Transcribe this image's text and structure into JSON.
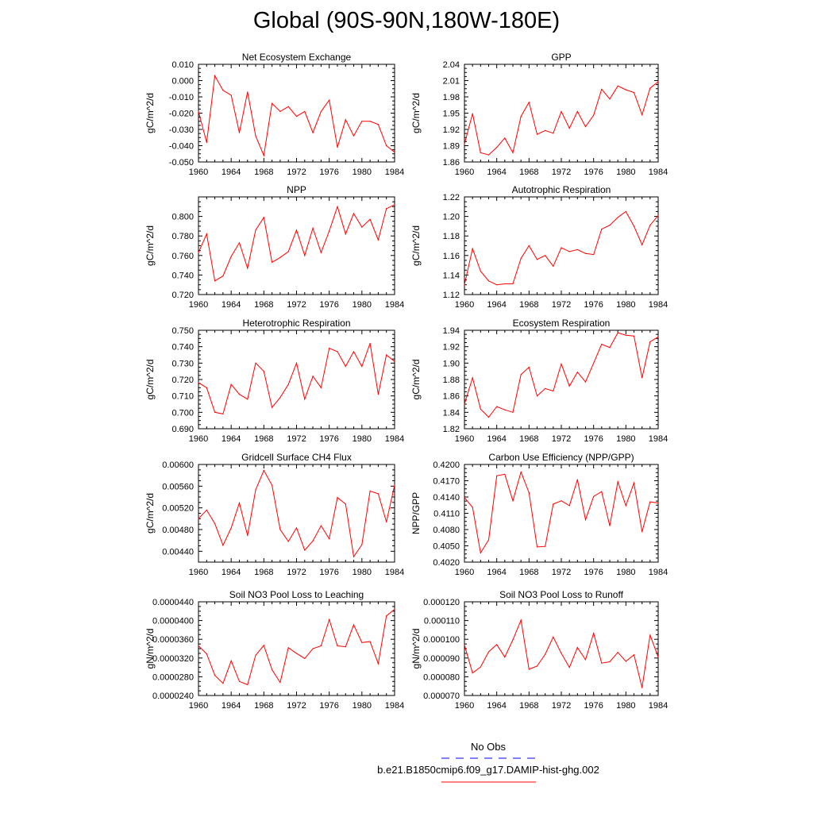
{
  "title": "Global (90S-90N,180W-180E)",
  "colors": {
    "model": "#ff0000",
    "obs": "#0000ff",
    "axis": "#000000"
  },
  "legend": {
    "obs_label": "No Obs",
    "model_label": "b.e21.B1850cmip6.f09_g17.DAMIP-hist-ghg.002"
  },
  "chart_data": [
    {
      "type": "line",
      "title": "Net Ecosystem Exchange",
      "ylabel": "gC/m^2/d",
      "xlim": [
        1960,
        1984
      ],
      "ylim": [
        -0.05,
        0.01
      ],
      "xticks": [
        "1960",
        "1964",
        "1968",
        "1972",
        "1976",
        "1980",
        "1984"
      ],
      "yticks": [
        "-0.050",
        "-0.040",
        "-0.030",
        "-0.020",
        "-0.010",
        "0.000",
        "0.010"
      ],
      "x": [
        1960,
        1961,
        1962,
        1963,
        1964,
        1965,
        1966,
        1967,
        1968,
        1969,
        1970,
        1971,
        1972,
        1973,
        1974,
        1975,
        1976,
        1977,
        1978,
        1979,
        1980,
        1981,
        1982,
        1983,
        1984
      ],
      "series": [
        {
          "values": [
            -0.019,
            -0.038,
            0.003,
            -0.006,
            -0.009,
            -0.032,
            -0.007,
            -0.034,
            -0.046,
            -0.014,
            -0.019,
            -0.016,
            -0.022,
            -0.019,
            -0.032,
            -0.019,
            -0.012,
            -0.041,
            -0.024,
            -0.034,
            -0.025,
            -0.025,
            -0.027,
            -0.04,
            -0.044
          ]
        }
      ]
    },
    {
      "type": "line",
      "title": "GPP",
      "ylabel": "gC/m^2/d",
      "xlim": [
        1960,
        1984
      ],
      "ylim": [
        1.86,
        2.04
      ],
      "xticks": [
        "1960",
        "1964",
        "1968",
        "1972",
        "1976",
        "1980",
        "1984"
      ],
      "yticks": [
        "1.86",
        "1.89",
        "1.92",
        "1.95",
        "1.98",
        "2.01",
        "2.04"
      ],
      "x": [
        1960,
        1961,
        1962,
        1963,
        1964,
        1965,
        1966,
        1967,
        1968,
        1969,
        1970,
        1971,
        1972,
        1973,
        1974,
        1975,
        1976,
        1977,
        1978,
        1979,
        1980,
        1981,
        1982,
        1983,
        1984
      ],
      "series": [
        {
          "values": [
            1.893,
            1.949,
            1.877,
            1.873,
            1.887,
            1.904,
            1.877,
            1.944,
            1.97,
            1.911,
            1.918,
            1.913,
            1.953,
            1.922,
            1.953,
            1.925,
            1.946,
            1.994,
            1.976,
            2.0,
            1.993,
            1.988,
            1.947,
            1.996,
            2.008
          ]
        }
      ]
    },
    {
      "type": "line",
      "title": "NPP",
      "ylabel": "gC/m^2/d",
      "xlim": [
        1960,
        1984
      ],
      "ylim": [
        0.72,
        0.82
      ],
      "xticks": [
        "1960",
        "1964",
        "1968",
        "1972",
        "1976",
        "1980",
        "1984"
      ],
      "yticks": [
        "0.720",
        "0.740",
        "0.760",
        "0.780",
        "0.800"
      ],
      "x": [
        1960,
        1961,
        1962,
        1963,
        1964,
        1965,
        1966,
        1967,
        1968,
        1969,
        1970,
        1971,
        1972,
        1973,
        1974,
        1975,
        1976,
        1977,
        1978,
        1979,
        1980,
        1981,
        1982,
        1983,
        1984
      ],
      "series": [
        {
          "values": [
            0.763,
            0.782,
            0.734,
            0.739,
            0.759,
            0.773,
            0.747,
            0.786,
            0.799,
            0.753,
            0.758,
            0.764,
            0.786,
            0.76,
            0.788,
            0.763,
            0.785,
            0.81,
            0.782,
            0.803,
            0.789,
            0.797,
            0.776,
            0.808,
            0.812
          ]
        }
      ]
    },
    {
      "type": "line",
      "title": "Autotrophic Respiration",
      "ylabel": "gC/m^2/d",
      "xlim": [
        1960,
        1984
      ],
      "ylim": [
        1.12,
        1.22
      ],
      "xticks": [
        "1960",
        "1964",
        "1968",
        "1972",
        "1976",
        "1980",
        "1984"
      ],
      "yticks": [
        "1.12",
        "1.14",
        "1.16",
        "1.18",
        "1.20",
        "1.22"
      ],
      "x": [
        1960,
        1961,
        1962,
        1963,
        1964,
        1965,
        1966,
        1967,
        1968,
        1969,
        1970,
        1971,
        1972,
        1973,
        1974,
        1975,
        1976,
        1977,
        1978,
        1979,
        1980,
        1981,
        1982,
        1983,
        1984
      ],
      "series": [
        {
          "values": [
            1.13,
            1.167,
            1.144,
            1.134,
            1.13,
            1.131,
            1.131,
            1.157,
            1.17,
            1.156,
            1.16,
            1.149,
            1.168,
            1.164,
            1.166,
            1.162,
            1.161,
            1.187,
            1.191,
            1.199,
            1.205,
            1.19,
            1.171,
            1.191,
            1.201
          ]
        }
      ]
    },
    {
      "type": "line",
      "title": "Heterotrophic Respiration",
      "ylabel": "gC/m^2/d",
      "xlim": [
        1960,
        1984
      ],
      "ylim": [
        0.69,
        0.75
      ],
      "xticks": [
        "1960",
        "1964",
        "1968",
        "1972",
        "1976",
        "1980",
        "1984"
      ],
      "yticks": [
        "0.690",
        "0.700",
        "0.710",
        "0.720",
        "0.730",
        "0.740",
        "0.750"
      ],
      "x": [
        1960,
        1961,
        1962,
        1963,
        1964,
        1965,
        1966,
        1967,
        1968,
        1969,
        1970,
        1971,
        1972,
        1973,
        1974,
        1975,
        1976,
        1977,
        1978,
        1979,
        1980,
        1981,
        1982,
        1983,
        1984
      ],
      "series": [
        {
          "values": [
            0.718,
            0.715,
            0.7,
            0.699,
            0.717,
            0.711,
            0.708,
            0.73,
            0.725,
            0.703,
            0.709,
            0.717,
            0.73,
            0.708,
            0.722,
            0.715,
            0.739,
            0.737,
            0.728,
            0.737,
            0.728,
            0.742,
            0.711,
            0.735,
            0.731
          ]
        }
      ]
    },
    {
      "type": "line",
      "title": "Ecosystem Respiration",
      "ylabel": "gC/m^2/d",
      "xlim": [
        1960,
        1984
      ],
      "ylim": [
        1.82,
        1.94
      ],
      "xticks": [
        "1960",
        "1964",
        "1968",
        "1972",
        "1976",
        "1980",
        "1984"
      ],
      "yticks": [
        "1.82",
        "1.84",
        "1.86",
        "1.88",
        "1.90",
        "1.92",
        "1.94"
      ],
      "x": [
        1960,
        1961,
        1962,
        1963,
        1964,
        1965,
        1966,
        1967,
        1968,
        1969,
        1970,
        1971,
        1972,
        1973,
        1974,
        1975,
        1976,
        1977,
        1978,
        1979,
        1980,
        1981,
        1982,
        1983,
        1984
      ],
      "series": [
        {
          "values": [
            1.85,
            1.882,
            1.844,
            1.834,
            1.847,
            1.843,
            1.84,
            1.886,
            1.895,
            1.86,
            1.869,
            1.866,
            1.899,
            1.872,
            1.889,
            1.877,
            1.9,
            1.923,
            1.919,
            1.937,
            1.934,
            1.933,
            1.882,
            1.926,
            1.932
          ]
        }
      ]
    },
    {
      "type": "line",
      "title": "Gridcell Surface CH4 Flux",
      "ylabel": "gC/m^2/d",
      "xlim": [
        1960,
        1984
      ],
      "ylim": [
        0.0042,
        0.006
      ],
      "xticks": [
        "1960",
        "1964",
        "1968",
        "1972",
        "1976",
        "1980",
        "1984"
      ],
      "yticks": [
        "0.00440",
        "0.00480",
        "0.00520",
        "0.00560",
        "0.00600"
      ],
      "x": [
        1960,
        1961,
        1962,
        1963,
        1964,
        1965,
        1966,
        1967,
        1968,
        1969,
        1970,
        1971,
        1972,
        1973,
        1974,
        1975,
        1976,
        1977,
        1978,
        1979,
        1980,
        1981,
        1982,
        1983,
        1984
      ],
      "series": [
        {
          "values": [
            0.005,
            0.00516,
            0.00491,
            0.00451,
            0.00483,
            0.00529,
            0.00469,
            0.00553,
            0.00589,
            0.00562,
            0.0048,
            0.00458,
            0.00483,
            0.00442,
            0.00459,
            0.00487,
            0.00463,
            0.00539,
            0.00527,
            0.0043,
            0.00452,
            0.00551,
            0.00546,
            0.00494,
            0.00562
          ]
        }
      ]
    },
    {
      "type": "line",
      "title": "Carbon Use Efficiency (NPP/GPP)",
      "ylabel": "NPP/GPP",
      "xlim": [
        1960,
        1984
      ],
      "ylim": [
        0.402,
        0.42
      ],
      "xticks": [
        "1960",
        "1964",
        "1968",
        "1972",
        "1976",
        "1980",
        "1984"
      ],
      "yticks": [
        "0.4020",
        "0.4050",
        "0.4080",
        "0.4110",
        "0.4140",
        "0.4170",
        "0.4200"
      ],
      "x": [
        1960,
        1961,
        1962,
        1963,
        1964,
        1965,
        1966,
        1967,
        1968,
        1969,
        1970,
        1971,
        1972,
        1973,
        1974,
        1975,
        1976,
        1977,
        1978,
        1979,
        1980,
        1981,
        1982,
        1983,
        1984
      ],
      "series": [
        {
          "values": [
            0.4139,
            0.4121,
            0.4037,
            0.4061,
            0.4179,
            0.4182,
            0.4133,
            0.4186,
            0.4148,
            0.4048,
            0.4049,
            0.4127,
            0.4133,
            0.4124,
            0.4172,
            0.4098,
            0.4141,
            0.415,
            0.4087,
            0.4168,
            0.4124,
            0.4166,
            0.4076,
            0.4131,
            0.4129
          ]
        }
      ]
    },
    {
      "type": "line",
      "title": "Soil NO3 Pool Loss to Leaching",
      "ylabel": "gN/m^2/d",
      "xlim": [
        1960,
        1984
      ],
      "ylim": [
        2.4e-05,
        4.4e-05
      ],
      "xticks": [
        "1960",
        "1964",
        "1968",
        "1972",
        "1976",
        "1980",
        "1984"
      ],
      "yticks": [
        "0.0000240",
        "0.0000280",
        "0.0000320",
        "0.0000360",
        "0.0000400",
        "0.0000440"
      ],
      "x": [
        1960,
        1961,
        1962,
        1963,
        1964,
        1965,
        1966,
        1967,
        1968,
        1969,
        1970,
        1971,
        1972,
        1973,
        1974,
        1975,
        1976,
        1977,
        1978,
        1979,
        1980,
        1981,
        1982,
        1983,
        1984
      ],
      "series": [
        {
          "values": [
            3.46e-05,
            3.29e-05,
            2.83e-05,
            2.66e-05,
            3.14e-05,
            2.7e-05,
            2.63e-05,
            3.26e-05,
            3.47e-05,
            2.95e-05,
            2.68e-05,
            3.42e-05,
            3.3e-05,
            3.19e-05,
            3.4e-05,
            3.46e-05,
            4.02e-05,
            3.46e-05,
            3.44e-05,
            3.91e-05,
            3.53e-05,
            3.55e-05,
            3.08e-05,
            4.1e-05,
            4.24e-05
          ]
        }
      ]
    },
    {
      "type": "line",
      "title": "Soil NO3 Pool Loss to Runoff",
      "ylabel": "gN/m^2/d",
      "xlim": [
        1960,
        1984
      ],
      "ylim": [
        7e-05,
        0.00012
      ],
      "xticks": [
        "1960",
        "1964",
        "1968",
        "1972",
        "1976",
        "1980",
        "1984"
      ],
      "yticks": [
        "0.000070",
        "0.000080",
        "0.000090",
        "0.000100",
        "0.000110",
        "0.000120"
      ],
      "x": [
        1960,
        1961,
        1962,
        1963,
        1964,
        1965,
        1966,
        1967,
        1968,
        1969,
        1970,
        1971,
        1972,
        1973,
        1974,
        1975,
        1976,
        1977,
        1978,
        1979,
        1980,
        1981,
        1982,
        1983,
        1984
      ],
      "series": [
        {
          "values": [
            9.7e-05,
            8.2e-05,
            8.52e-05,
            9.33e-05,
            9.72e-05,
            9.05e-05,
            9.97e-05,
            0.0001102,
            8.4e-05,
            8.57e-05,
            9.2e-05,
            0.0001012,
            9.25e-05,
            8.5e-05,
            9.56e-05,
            8.91e-05,
            0.0001032,
            8.73e-05,
            8.8e-05,
            9.3e-05,
            8.82e-05,
            9.17e-05,
            7.42e-05,
            0.0001023,
            9.05e-05
          ]
        }
      ]
    }
  ]
}
